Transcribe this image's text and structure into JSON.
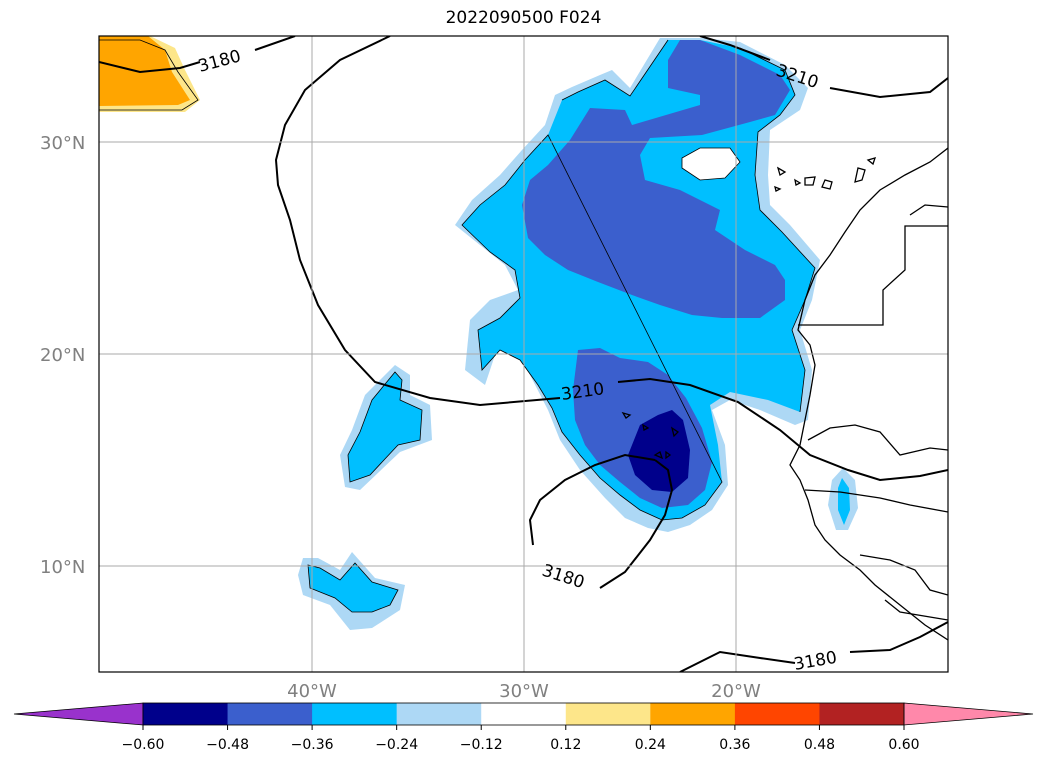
{
  "title": "2022090500 F024",
  "map": {
    "lat_labels": [
      "30°N",
      "20°N",
      "10°N"
    ],
    "lon_labels": [
      "40°W",
      "30°W",
      "20°W"
    ],
    "contour_labels": [
      "3180",
      "3210",
      "3210",
      "3180",
      "3180"
    ],
    "gridlines": true
  },
  "colorbar": {
    "ticks": [
      "−0.60",
      "−0.48",
      "−0.36",
      "−0.24",
      "−0.12",
      "0.12",
      "0.24",
      "0.36",
      "0.48",
      "0.60"
    ],
    "colors": [
      "#9932cc",
      "#00008b",
      "#3b5fcd",
      "#00bfff",
      "#add8f5",
      "#ffffff",
      "#fde68a",
      "#ffa500",
      "#ff4500",
      "#b22222",
      "#ff88aa"
    ],
    "extend": "both"
  },
  "palette": {
    "neg_deep": "#00008b",
    "neg_mid": "#3b5fcd",
    "neg_light": "#00bfff",
    "neg_pale": "#add8f5",
    "pos_pale": "#fde68a",
    "pos_mid": "#ffa500"
  }
}
